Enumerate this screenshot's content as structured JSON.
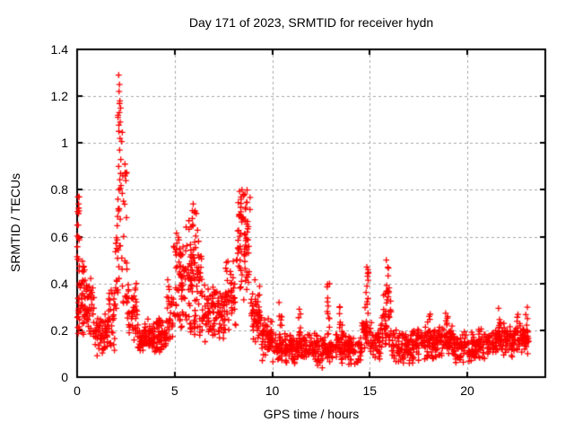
{
  "chart_data": {
    "type": "scatter",
    "title": "Day 171 of 2023, SRMTID for receiver hydn",
    "xlabel": "GPS time / hours",
    "ylabel": "SRMTID / TECUs",
    "xlim": [
      0,
      24
    ],
    "ylim": [
      0,
      1.4
    ],
    "xticks": [
      0,
      5,
      10,
      15,
      20
    ],
    "xtick_labels": [
      "0",
      "5",
      "10",
      "15",
      "20"
    ],
    "yticks": [
      0,
      0.2,
      0.4,
      0.6,
      0.8,
      1,
      1.2,
      1.4
    ],
    "ytick_labels": [
      "0",
      "0.2",
      "0.4",
      "0.6",
      "0.8",
      "1",
      "1.2",
      "1.4"
    ],
    "grid": true,
    "grid_style": "dashed",
    "legend": "none",
    "marker": "plus",
    "marker_color": "#ff0000",
    "grid_color": "#a8a8a8",
    "axis_color": "#000000",
    "background": "#ffffff",
    "data_x_start": 0.0,
    "data_x_end": 23.1,
    "global_max_point": [
      2.13,
      1.29
    ],
    "envelope_fields": [
      "x_start",
      "x_end",
      "count",
      "y_min",
      "y_max",
      "distribution"
    ],
    "envelope": [
      [
        0.0,
        0.12,
        22,
        0.18,
        0.77,
        "u"
      ],
      [
        0.05,
        0.4,
        40,
        0.13,
        0.55,
        "b"
      ],
      [
        0.4,
        0.9,
        42,
        0.12,
        0.48,
        "b"
      ],
      [
        0.9,
        1.6,
        60,
        0.07,
        0.28,
        "b"
      ],
      [
        1.6,
        1.95,
        30,
        0.1,
        0.42,
        "b"
      ],
      [
        1.95,
        2.1,
        15,
        0.28,
        0.95,
        "u"
      ],
      [
        2.08,
        2.32,
        26,
        0.42,
        1.2,
        "u"
      ],
      [
        2.3,
        2.6,
        20,
        0.28,
        0.88,
        "u"
      ],
      [
        2.55,
        3.1,
        45,
        0.12,
        0.45,
        "b"
      ],
      [
        3.1,
        4.6,
        130,
        0.09,
        0.26,
        "b"
      ],
      [
        4.6,
        4.95,
        28,
        0.14,
        0.45,
        "b"
      ],
      [
        4.95,
        5.25,
        26,
        0.26,
        0.63,
        "u"
      ],
      [
        5.25,
        6.4,
        95,
        0.27,
        0.62,
        "b"
      ],
      [
        5.45,
        6.25,
        12,
        0.58,
        0.74,
        "u"
      ],
      [
        5.25,
        6.4,
        30,
        0.17,
        0.3,
        "b"
      ],
      [
        6.4,
        7.6,
        100,
        0.14,
        0.4,
        "b"
      ],
      [
        7.6,
        8.15,
        42,
        0.17,
        0.55,
        "b"
      ],
      [
        8.15,
        8.9,
        55,
        0.28,
        0.78,
        "b"
      ],
      [
        8.3,
        8.75,
        22,
        0.55,
        0.8,
        "u"
      ],
      [
        8.9,
        9.45,
        52,
        0.14,
        0.42,
        "b"
      ],
      [
        9.45,
        10.0,
        55,
        0.06,
        0.28,
        "b"
      ],
      [
        10.0,
        11.0,
        75,
        0.05,
        0.2,
        "b"
      ],
      [
        11.0,
        12.0,
        75,
        0.05,
        0.2,
        "b"
      ],
      [
        12.0,
        13.0,
        75,
        0.04,
        0.19,
        "b"
      ],
      [
        13.0,
        14.0,
        72,
        0.05,
        0.19,
        "b"
      ],
      [
        14.0,
        14.6,
        42,
        0.05,
        0.18,
        "b"
      ],
      [
        14.6,
        15.1,
        36,
        0.08,
        0.3,
        "b"
      ],
      [
        15.1,
        15.55,
        32,
        0.07,
        0.22,
        "b"
      ],
      [
        15.55,
        16.1,
        40,
        0.1,
        0.35,
        "b"
      ],
      [
        16.1,
        17.3,
        88,
        0.05,
        0.21,
        "b"
      ],
      [
        17.3,
        18.4,
        82,
        0.06,
        0.22,
        "b"
      ],
      [
        18.4,
        19.3,
        72,
        0.07,
        0.24,
        "b"
      ],
      [
        19.3,
        20.5,
        88,
        0.05,
        0.2,
        "b"
      ],
      [
        20.5,
        21.5,
        72,
        0.07,
        0.22,
        "b"
      ],
      [
        21.5,
        22.3,
        62,
        0.08,
        0.24,
        "b"
      ],
      [
        22.3,
        23.15,
        68,
        0.08,
        0.25,
        "b"
      ]
    ],
    "spike_fields": [
      "x_start",
      "x_end",
      "count",
      "y_min",
      "y_max"
    ],
    "spike_columns": [
      [
        10.35,
        10.5,
        8,
        0.15,
        0.33
      ],
      [
        11.35,
        11.5,
        7,
        0.14,
        0.3
      ],
      [
        12.75,
        12.95,
        12,
        0.18,
        0.42
      ],
      [
        13.45,
        13.6,
        8,
        0.14,
        0.35
      ],
      [
        14.75,
        14.95,
        13,
        0.2,
        0.47
      ],
      [
        15.7,
        16.0,
        16,
        0.24,
        0.5
      ],
      [
        17.95,
        18.1,
        7,
        0.15,
        0.28
      ],
      [
        18.8,
        19.0,
        8,
        0.16,
        0.3
      ],
      [
        21.6,
        21.75,
        7,
        0.15,
        0.31
      ],
      [
        22.55,
        22.7,
        6,
        0.15,
        0.28
      ],
      [
        22.95,
        23.1,
        6,
        0.15,
        0.3
      ]
    ],
    "peak_points": [
      [
        2.13,
        1.29
      ],
      [
        2.17,
        1.25
      ],
      [
        2.15,
        1.22
      ],
      [
        2.19,
        1.18
      ],
      [
        2.16,
        1.13
      ],
      [
        2.21,
        1.09
      ],
      [
        2.14,
        1.05
      ],
      [
        2.2,
        1.02
      ],
      [
        2.18,
        0.97
      ],
      [
        2.24,
        0.93
      ],
      [
        2.45,
        0.91
      ],
      [
        2.52,
        0.87
      ],
      [
        0.05,
        0.77
      ],
      [
        0.08,
        0.74
      ],
      [
        0.1,
        0.71
      ],
      [
        8.45,
        0.8
      ],
      [
        8.52,
        0.78
      ],
      [
        8.4,
        0.76
      ],
      [
        5.95,
        0.74
      ],
      [
        6.05,
        0.71
      ],
      [
        15.85,
        0.5
      ],
      [
        14.85,
        0.47
      ]
    ]
  }
}
